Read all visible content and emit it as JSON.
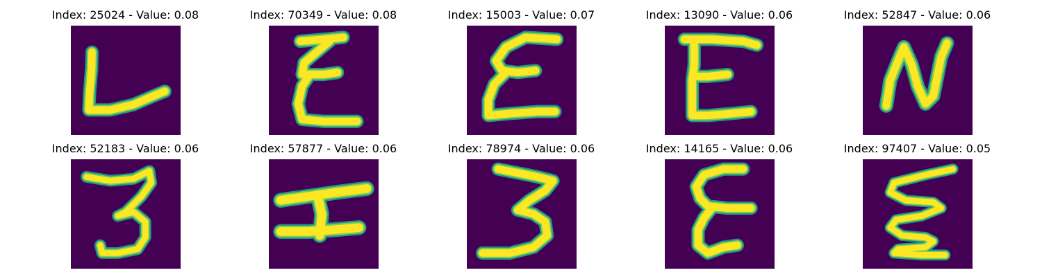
{
  "figure": {
    "background": "#ffffff",
    "colormap": {
      "background": "#440154",
      "edge": "#21918c",
      "mid": "#7ad151",
      "core": "#fde725"
    },
    "panels": [
      {
        "index": "25024",
        "value": "0.08",
        "title": "Index: 25024 - Value: 0.08",
        "glyph": "L"
      },
      {
        "index": "70349",
        "value": "0.08",
        "title": "Index: 70349 - Value: 0.08",
        "glyph": "E"
      },
      {
        "index": "15003",
        "value": "0.07",
        "title": "Index: 15003 - Value: 0.07",
        "glyph": "E"
      },
      {
        "index": "13090",
        "value": "0.06",
        "title": "Index: 13090 - Value: 0.06",
        "glyph": "E"
      },
      {
        "index": "52847",
        "value": "0.06",
        "title": "Index: 52847 - Value: 0.06",
        "glyph": "N"
      },
      {
        "index": "52183",
        "value": "0.06",
        "title": "Index: 52183 - Value: 0.06",
        "glyph": "3"
      },
      {
        "index": "57877",
        "value": "0.06",
        "title": "Index: 57877 - Value: 0.06",
        "glyph": "H"
      },
      {
        "index": "78974",
        "value": "0.06",
        "title": "Index: 78974 - Value: 0.06",
        "glyph": "3"
      },
      {
        "index": "14165",
        "value": "0.06",
        "title": "Index: 14165 - Value: 0.06",
        "glyph": "E"
      },
      {
        "index": "97407",
        "value": "0.05",
        "title": "Index: 97407 - Value: 0.05",
        "glyph": "E"
      }
    ]
  }
}
